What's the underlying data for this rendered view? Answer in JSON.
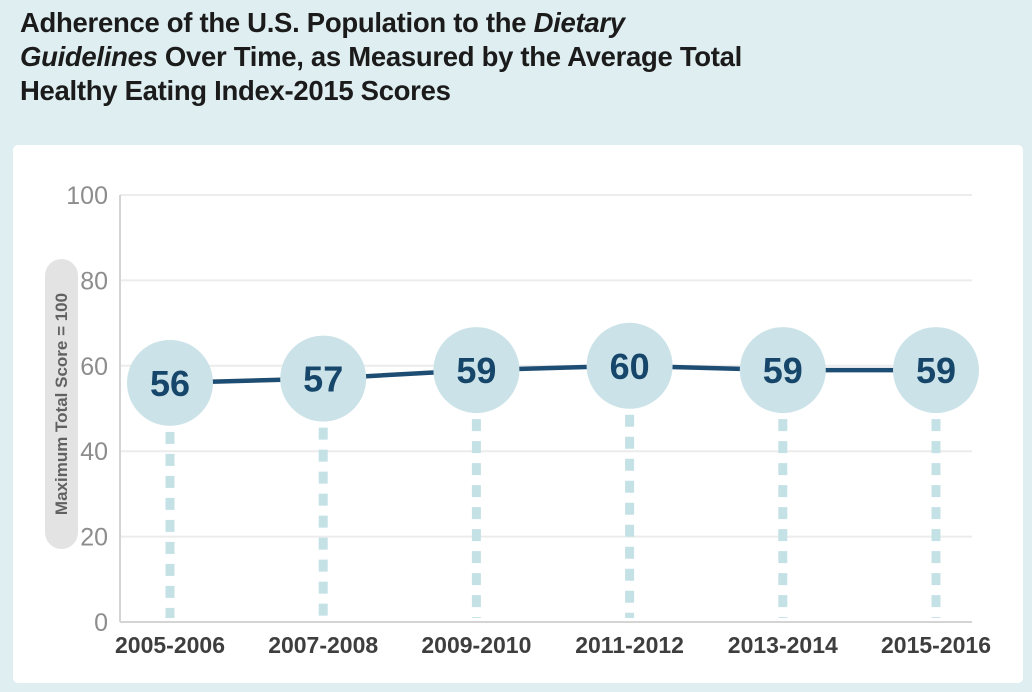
{
  "page": {
    "background_color": "#dfeef1",
    "panel_color": "#ffffff"
  },
  "title": {
    "color": "#1b1b1b",
    "full_text": "Adherence of the U.S. Population to the Dietary Guidelines Over Time, as Measured by the Average Total Healthy Eating Index-2015 Scores",
    "lines": [
      [
        {
          "text": "Adherence of the U.S. Population to the ",
          "italic": false
        },
        {
          "text": "Dietary",
          "italic": true
        }
      ],
      [
        {
          "text": "Guidelines",
          "italic": true
        },
        {
          "text": " Over Time, as Measured by the Average Total",
          "italic": false
        }
      ],
      [
        {
          "text": "Healthy Eating Index-2015 Scores",
          "italic": false
        }
      ]
    ]
  },
  "chart_data": {
    "type": "line",
    "title": "Adherence of the U.S. Population to the Dietary Guidelines Over Time, as Measured by the Average Total Healthy Eating Index-2015 Scores",
    "categories": [
      "2005-2006",
      "2007-2008",
      "2009-2010",
      "2011-2012",
      "2013-2014",
      "2015-2016"
    ],
    "values": [
      56,
      57,
      59,
      60,
      59,
      59
    ],
    "xlabel": "",
    "ylabel": "Maximum Total Score = 100",
    "ylim": [
      0,
      100
    ],
    "yticks": [
      0,
      20,
      40,
      60,
      80,
      100
    ],
    "grid": true,
    "legend_position": "none",
    "marker_style": "filled-circle-with-value-label",
    "drop_lines": "dashed-vertical-to-baseline",
    "colors": {
      "line": "#1e4d73",
      "marker_fill": "#cbe3e8",
      "value_text": "#17466b",
      "dashed_drop_line": "#c4e1e6",
      "grid_line": "#ececec",
      "axis_line": "#d4d4d4",
      "y_tick_text": "#8d8d8d",
      "x_tick_text": "#3e3e3e",
      "ylabel_pill_bg": "#e3e3e3",
      "ylabel_pill_text": "#616161"
    }
  }
}
